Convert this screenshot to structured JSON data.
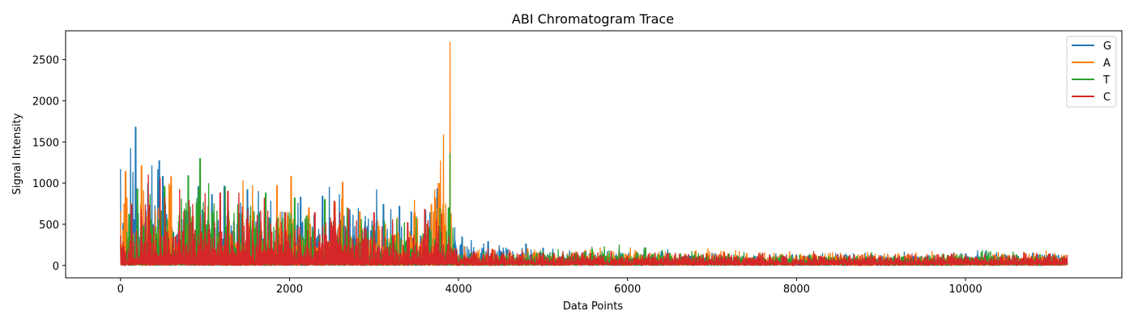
{
  "chart_data": {
    "type": "line",
    "title": "ABI Chromatogram Trace",
    "xlabel": "Data Points",
    "ylabel": "Signal Intensity",
    "xlim": [
      -650,
      11850
    ],
    "ylim": [
      -150,
      2850
    ],
    "xticks": [
      0,
      2000,
      4000,
      6000,
      8000,
      10000
    ],
    "yticks": [
      0,
      500,
      1000,
      1500,
      2000,
      2500
    ],
    "legend_position": "top-right",
    "grid": false,
    "series": [
      {
        "name": "G",
        "color": "#1f77b4",
        "x": [
          0,
          120,
          180,
          460,
          500,
          920,
          1080,
          1230,
          1420,
          1500,
          1630,
          2130,
          2390,
          2470,
          2590,
          3030,
          3110,
          3200,
          3300,
          3440,
          3750,
          3890,
          4350,
          4800,
          5000,
          5900,
          6400,
          7000,
          8000,
          9000,
          10000,
          11200
        ],
        "y": [
          1170,
          1420,
          1680,
          1270,
          1080,
          960,
          860,
          960,
          760,
          920,
          900,
          830,
          840,
          950,
          860,
          920,
          740,
          680,
          720,
          650,
          930,
          560,
          290,
          260,
          210,
          180,
          170,
          150,
          130,
          120,
          140,
          110
        ],
        "noise": 70
      },
      {
        "name": "A",
        "color": "#ff7f0e",
        "x": [
          0,
          60,
          250,
          600,
          1040,
          1450,
          1560,
          1850,
          2020,
          2230,
          2540,
          2630,
          2830,
          3480,
          3680,
          3900,
          3950,
          4400,
          4900,
          5500,
          6100,
          6800,
          7600,
          8400,
          9200,
          10000,
          10700,
          11200
        ],
        "y": [
          660,
          1140,
          1210,
          1080,
          720,
          1030,
          970,
          970,
          1080,
          700,
          760,
          1010,
          650,
          790,
          740,
          2710,
          200,
          200,
          190,
          180,
          160,
          170,
          140,
          150,
          140,
          120,
          150,
          130
        ],
        "noise": 80
      },
      {
        "name": "T",
        "color": "#2ca02c",
        "x": [
          0,
          100,
          200,
          350,
          520,
          800,
          940,
          1240,
          1720,
          2060,
          2420,
          2680,
          3270,
          3500,
          3650,
          3780,
          3880,
          3900,
          3960,
          4300,
          5000,
          5900,
          6500,
          7200,
          8000,
          9000,
          9800,
          10200,
          10600,
          11200
        ],
        "y": [
          240,
          620,
          930,
          860,
          960,
          1090,
          1300,
          960,
          880,
          820,
          800,
          700,
          560,
          590,
          460,
          690,
          700,
          1360,
          140,
          160,
          170,
          250,
          150,
          140,
          110,
          110,
          120,
          180,
          130,
          90
        ],
        "noise": 70
      },
      {
        "name": "C",
        "color": "#d62728",
        "x": [
          0,
          130,
          330,
          470,
          700,
          1000,
          1180,
          1270,
          1400,
          1700,
          1950,
          2300,
          2530,
          2700,
          3000,
          3400,
          3600,
          3800,
          3950,
          4400,
          5000,
          6000,
          7000,
          8000,
          9000,
          10000,
          10500,
          11000,
          11200
        ],
        "y": [
          360,
          740,
          1100,
          1060,
          920,
          870,
          880,
          900,
          880,
          820,
          640,
          640,
          780,
          690,
          640,
          520,
          680,
          620,
          190,
          190,
          150,
          120,
          120,
          110,
          110,
          110,
          100,
          140,
          120
        ],
        "noise": 80
      }
    ]
  }
}
